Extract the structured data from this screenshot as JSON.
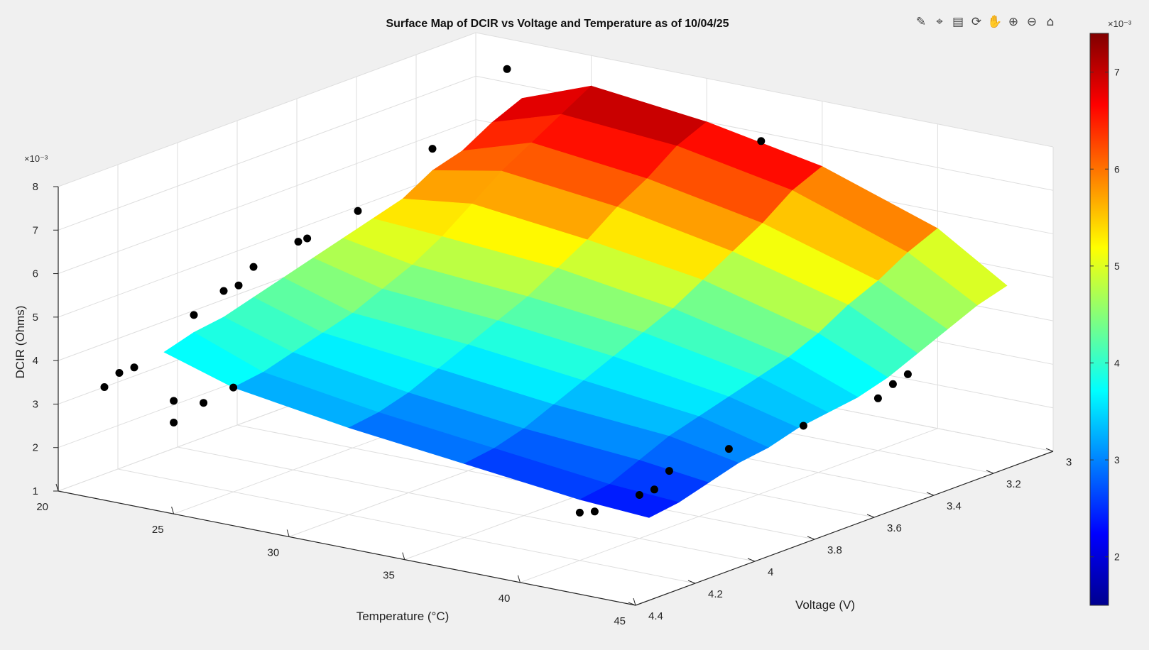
{
  "chart_data": {
    "type": "surface",
    "title": "Surface Map of DCIR vs Voltage and Temperature as of 10/04/25",
    "xlabel": "Temperature (°C)",
    "ylabel": "Voltage (V)",
    "zlabel": "DCIR (Ohms)",
    "z_exponent": "×10⁻³",
    "colorbar_exponent": "×10⁻³",
    "colormap": "jet",
    "xlim": [
      20,
      45
    ],
    "ylim": [
      3.0,
      4.4
    ],
    "zlim": [
      1,
      8
    ],
    "clim": [
      1.5,
      7.4
    ],
    "x_ticks": [
      "20",
      "25",
      "30",
      "35",
      "40",
      "45"
    ],
    "y_ticks": [
      "3",
      "3.2",
      "3.4",
      "3.6",
      "3.8",
      "4",
      "4.2",
      "4.4"
    ],
    "z_ticks": [
      "1",
      "2",
      "3",
      "4",
      "5",
      "6",
      "7",
      "8"
    ],
    "colorbar_ticks": [
      "2",
      "3",
      "4",
      "5",
      "6",
      "7"
    ],
    "temperature_grid": [
      22,
      25,
      30,
      35,
      40,
      43
    ],
    "voltage_grid": [
      3.0,
      3.1,
      3.2,
      3.3,
      3.4,
      3.5,
      3.6,
      3.7,
      3.8,
      3.9,
      4.0,
      4.1,
      4.2
    ],
    "dcir_surface_mOhm": [
      [
        6.7,
        7.3,
        7.0,
        6.5,
        5.6,
        4.6
      ],
      [
        6.4,
        6.9,
        6.7,
        6.2,
        5.3,
        4.4
      ],
      [
        6.0,
        6.5,
        6.2,
        5.7,
        4.9,
        4.1
      ],
      [
        5.8,
        6.1,
        5.8,
        5.3,
        4.6,
        3.8
      ],
      [
        5.4,
        5.6,
        5.3,
        4.9,
        4.2,
        3.5
      ],
      [
        5.2,
        5.1,
        4.9,
        4.5,
        3.9,
        3.3
      ],
      [
        5.0,
        4.7,
        4.5,
        4.2,
        3.7,
        3.2
      ],
      [
        4.8,
        4.4,
        4.2,
        3.9,
        3.5,
        3.1
      ],
      [
        4.6,
        4.1,
        3.9,
        3.6,
        3.3,
        2.9
      ],
      [
        4.4,
        3.9,
        3.6,
        3.3,
        3.1,
        2.8
      ],
      [
        4.2,
        3.7,
        3.3,
        3.0,
        2.8,
        2.6
      ],
      [
        4.1,
        3.5,
        3.1,
        2.8,
        2.5,
        2.4
      ],
      [
        3.9,
        3.4,
        3.0,
        2.7,
        2.4,
        2.3
      ]
    ],
    "measured_points": [
      {
        "T": 22,
        "V": 3.05,
        "DCIR": 7.5
      },
      {
        "T": 22,
        "V": 3.3,
        "DCIR": 6.3
      },
      {
        "T": 22,
        "V": 3.55,
        "DCIR": 5.5
      },
      {
        "T": 22,
        "V": 3.72,
        "DCIR": 5.3
      },
      {
        "T": 22,
        "V": 3.75,
        "DCIR": 5.3
      },
      {
        "T": 22,
        "V": 3.9,
        "DCIR": 5.1
      },
      {
        "T": 22,
        "V": 3.95,
        "DCIR": 4.8
      },
      {
        "T": 22,
        "V": 4.0,
        "DCIR": 4.8
      },
      {
        "T": 22,
        "V": 4.1,
        "DCIR": 4.5
      },
      {
        "T": 22,
        "V": 4.3,
        "DCIR": 3.8
      },
      {
        "T": 22,
        "V": 4.35,
        "DCIR": 3.8
      },
      {
        "T": 22,
        "V": 4.4,
        "DCIR": 3.6
      },
      {
        "T": 25,
        "V": 4.4,
        "DCIR": 3.6
      },
      {
        "T": 25,
        "V": 4.3,
        "DCIR": 3.3
      },
      {
        "T": 25,
        "V": 4.2,
        "DCIR": 3.4
      },
      {
        "T": 25,
        "V": 4.4,
        "DCIR": 3.1
      },
      {
        "T": 40,
        "V": 3.1,
        "DCIR": 2.5
      },
      {
        "T": 40,
        "V": 3.15,
        "DCIR": 2.4
      },
      {
        "T": 40,
        "V": 3.2,
        "DCIR": 2.2
      },
      {
        "T": 40,
        "V": 3.45,
        "DCIR": 2.2
      },
      {
        "T": 40,
        "V": 3.7,
        "DCIR": 2.3
      },
      {
        "T": 40,
        "V": 3.9,
        "DCIR": 2.3
      },
      {
        "T": 40,
        "V": 3.95,
        "DCIR": 2.0
      },
      {
        "T": 40,
        "V": 4.0,
        "DCIR": 2.0
      },
      {
        "T": 40,
        "V": 4.15,
        "DCIR": 2.0
      },
      {
        "T": 40,
        "V": 4.2,
        "DCIR": 2.1
      },
      {
        "T": 33,
        "V": 3.05,
        "DCIR": 7.0
      }
    ]
  },
  "toolbar": [
    {
      "name": "brush-icon",
      "glyph": "✎"
    },
    {
      "name": "data-tips-icon",
      "glyph": "⌖"
    },
    {
      "name": "export-icon",
      "glyph": "▤"
    },
    {
      "name": "rotate-3d-icon",
      "glyph": "⟳"
    },
    {
      "name": "pan-icon",
      "glyph": "✋"
    },
    {
      "name": "zoom-in-icon",
      "glyph": "⊕"
    },
    {
      "name": "zoom-out-icon",
      "glyph": "⊖"
    },
    {
      "name": "home-icon",
      "glyph": "⌂"
    }
  ]
}
